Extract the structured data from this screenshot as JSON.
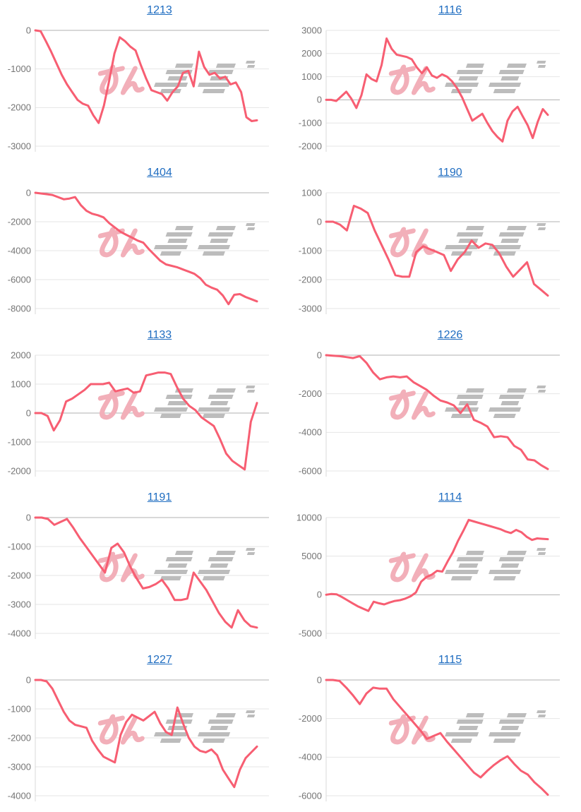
{
  "page": {
    "background": "#ffffff"
  },
  "style": {
    "link_color": "#1f6dc1",
    "line_color": "#f75e72",
    "grid_color": "#e6e6e6",
    "zero_line_color": "#b0b0b0",
    "axis_line_color": "#d9d9d9",
    "label_color": "#757575",
    "watermark_pink": "#f2afb9",
    "watermark_gray": "#bcbcbc"
  },
  "watermark": {
    "description": "pink hiragana + gray speed-line glyph logo"
  },
  "chart_data": [
    {
      "type": "line",
      "title": "1213",
      "ylabel": "",
      "y_ticks": [
        0,
        -1000,
        -2000,
        -3000
      ],
      "ylim": [
        -3000,
        0
      ],
      "x_axis": {
        "labels_visible": false
      },
      "grid": true,
      "legend": "none",
      "values": [
        0,
        -20,
        -280,
        -550,
        -850,
        -1150,
        -1400,
        -1600,
        -1800,
        -1900,
        -1950,
        -2200,
        -2400,
        -1950,
        -1300,
        -600,
        -180,
        -280,
        -420,
        -520,
        -900,
        -1250,
        -1550,
        -1600,
        -1650,
        -1820,
        -1600,
        -1450,
        -1100,
        -1050,
        -1450,
        -550,
        -950,
        -1150,
        -1100,
        -1250,
        -1200,
        -1400,
        -1350,
        -1600,
        -2250,
        -2350,
        -2330
      ]
    },
    {
      "type": "line",
      "title": "1116",
      "ylabel": "",
      "y_ticks": [
        3000,
        2000,
        1000,
        0,
        -1000,
        -2000
      ],
      "ylim": [
        -2000,
        3000
      ],
      "x_axis": {
        "labels_visible": false
      },
      "grid": true,
      "legend": "none",
      "values": [
        0,
        0,
        -50,
        150,
        350,
        50,
        -350,
        200,
        1100,
        900,
        800,
        1500,
        2650,
        2200,
        1950,
        1900,
        1850,
        1750,
        1400,
        1150,
        1400,
        1050,
        950,
        1100,
        1000,
        800,
        500,
        100,
        -400,
        -900,
        -750,
        -600,
        -1000,
        -1350,
        -1600,
        -1800,
        -900,
        -500,
        -300,
        -700,
        -1100,
        -1650,
        -950,
        -400,
        -650
      ]
    },
    {
      "type": "line",
      "title": "1404",
      "ylabel": "",
      "y_ticks": [
        0,
        -2000,
        -4000,
        -6000,
        -8000
      ],
      "ylim": [
        -8000,
        0
      ],
      "x_axis": {
        "labels_visible": false
      },
      "grid": true,
      "legend": "none",
      "values": [
        0,
        -50,
        -100,
        -150,
        -300,
        -450,
        -400,
        -300,
        -850,
        -1250,
        -1450,
        -1550,
        -1700,
        -2100,
        -2400,
        -2700,
        -2900,
        -3100,
        -3300,
        -3450,
        -3900,
        -4300,
        -4700,
        -4950,
        -5050,
        -5150,
        -5300,
        -5450,
        -5600,
        -5900,
        -6350,
        -6550,
        -6700,
        -7100,
        -7700,
        -7050,
        -7000,
        -7200,
        -7350,
        -7500
      ]
    },
    {
      "type": "line",
      "title": "1190",
      "ylabel": "",
      "y_ticks": [
        1000,
        0,
        -1000,
        -2000,
        -3000
      ],
      "ylim": [
        -3000,
        1000
      ],
      "x_axis": {
        "labels_visible": false
      },
      "grid": true,
      "legend": "none",
      "values": [
        0,
        0,
        -100,
        -300,
        550,
        450,
        300,
        -300,
        -800,
        -1300,
        -1850,
        -1900,
        -1900,
        -1050,
        -850,
        -950,
        -1050,
        -1150,
        -1700,
        -1300,
        -1050,
        -650,
        -900,
        -750,
        -800,
        -1100,
        -1550,
        -1900,
        -1650,
        -1400,
        -2150,
        -2350,
        -2550
      ]
    },
    {
      "type": "line",
      "title": "1133",
      "ylabel": "",
      "y_ticks": [
        2000,
        1000,
        0,
        -1000,
        -2000
      ],
      "ylim": [
        -2000,
        2000
      ],
      "x_axis": {
        "labels_visible": false
      },
      "grid": true,
      "legend": "none",
      "values": [
        0,
        0,
        -100,
        -600,
        -250,
        400,
        500,
        650,
        800,
        1000,
        1000,
        1000,
        1050,
        750,
        800,
        850,
        700,
        750,
        1300,
        1350,
        1400,
        1400,
        1350,
        900,
        500,
        250,
        100,
        -150,
        -300,
        -450,
        -900,
        -1400,
        -1650,
        -1800,
        -1950,
        -300,
        350
      ]
    },
    {
      "type": "line",
      "title": "1226",
      "ylabel": "",
      "y_ticks": [
        0,
        -2000,
        -4000,
        -6000
      ],
      "ylim": [
        -6000,
        0
      ],
      "x_axis": {
        "labels_visible": false
      },
      "grid": true,
      "legend": "none",
      "values": [
        0,
        -30,
        -50,
        -100,
        -150,
        -50,
        -400,
        -900,
        -1250,
        -1150,
        -1100,
        -1150,
        -1100,
        -1400,
        -1600,
        -1800,
        -2100,
        -2350,
        -2450,
        -2600,
        -3000,
        -2550,
        -3350,
        -3500,
        -3700,
        -4250,
        -4200,
        -4250,
        -4700,
        -4900,
        -5400,
        -5450,
        -5700,
        -5900
      ]
    },
    {
      "type": "line",
      "title": "1191",
      "ylabel": "",
      "y_ticks": [
        0,
        -1000,
        -2000,
        -3000,
        -4000
      ],
      "ylim": [
        -4000,
        0
      ],
      "x_axis": {
        "labels_visible": false
      },
      "grid": true,
      "legend": "none",
      "values": [
        0,
        0,
        -50,
        -250,
        -150,
        -50,
        -350,
        -700,
        -1000,
        -1300,
        -1600,
        -1900,
        -1050,
        -900,
        -1200,
        -1700,
        -2100,
        -2450,
        -2400,
        -2300,
        -2150,
        -2450,
        -2850,
        -2850,
        -2800,
        -1900,
        -2200,
        -2500,
        -2900,
        -3300,
        -3600,
        -3800,
        -3200,
        -3550,
        -3750,
        -3800
      ]
    },
    {
      "type": "line",
      "title": "1114",
      "ylabel": "",
      "y_ticks": [
        10000,
        5000,
        0,
        -5000
      ],
      "ylim": [
        -5000,
        10000
      ],
      "x_axis": {
        "labels_visible": false
      },
      "grid": true,
      "legend": "none",
      "values": [
        0,
        100,
        50,
        -300,
        -700,
        -1100,
        -1500,
        -1800,
        -2100,
        -900,
        -1100,
        -1250,
        -1000,
        -800,
        -700,
        -500,
        -200,
        300,
        1700,
        2300,
        2600,
        3100,
        3000,
        4300,
        5500,
        7000,
        8300,
        9700,
        9500,
        9300,
        9100,
        8900,
        8700,
        8500,
        8200,
        8000,
        8400,
        8100,
        7500,
        7100,
        7300,
        7250,
        7200
      ]
    },
    {
      "type": "line",
      "title": "1227",
      "ylabel": "",
      "y_ticks": [
        0,
        -1000,
        -2000,
        -3000,
        -4000
      ],
      "ylim": [
        -4000,
        0
      ],
      "x_axis": {
        "labels_visible": false
      },
      "grid": true,
      "legend": "none",
      "values": [
        0,
        0,
        -50,
        -300,
        -700,
        -1100,
        -1400,
        -1550,
        -1600,
        -1650,
        -2100,
        -2400,
        -2650,
        -2750,
        -2850,
        -1900,
        -1450,
        -1200,
        -1300,
        -1400,
        -1250,
        -1100,
        -1500,
        -1800,
        -1900,
        -950,
        -1500,
        -2000,
        -2300,
        -2450,
        -2500,
        -2400,
        -2600,
        -3100,
        -3400,
        -3700,
        -3100,
        -2700,
        -2500,
        -2300
      ]
    },
    {
      "type": "line",
      "title": "1115",
      "ylabel": "",
      "y_ticks": [
        0,
        -2000,
        -4000,
        -6000
      ],
      "ylim": [
        -6000,
        0
      ],
      "x_axis": {
        "labels_visible": false
      },
      "grid": true,
      "legend": "none",
      "values": [
        0,
        0,
        -50,
        -400,
        -800,
        -1250,
        -700,
        -400,
        -450,
        -450,
        -1000,
        -1400,
        -1800,
        -2200,
        -2600,
        -3050,
        -2900,
        -2750,
        -3200,
        -3600,
        -4000,
        -4400,
        -4800,
        -5050,
        -4700,
        -4400,
        -4150,
        -3950,
        -4350,
        -4700,
        -4900,
        -5300,
        -5600,
        -5950
      ]
    }
  ]
}
